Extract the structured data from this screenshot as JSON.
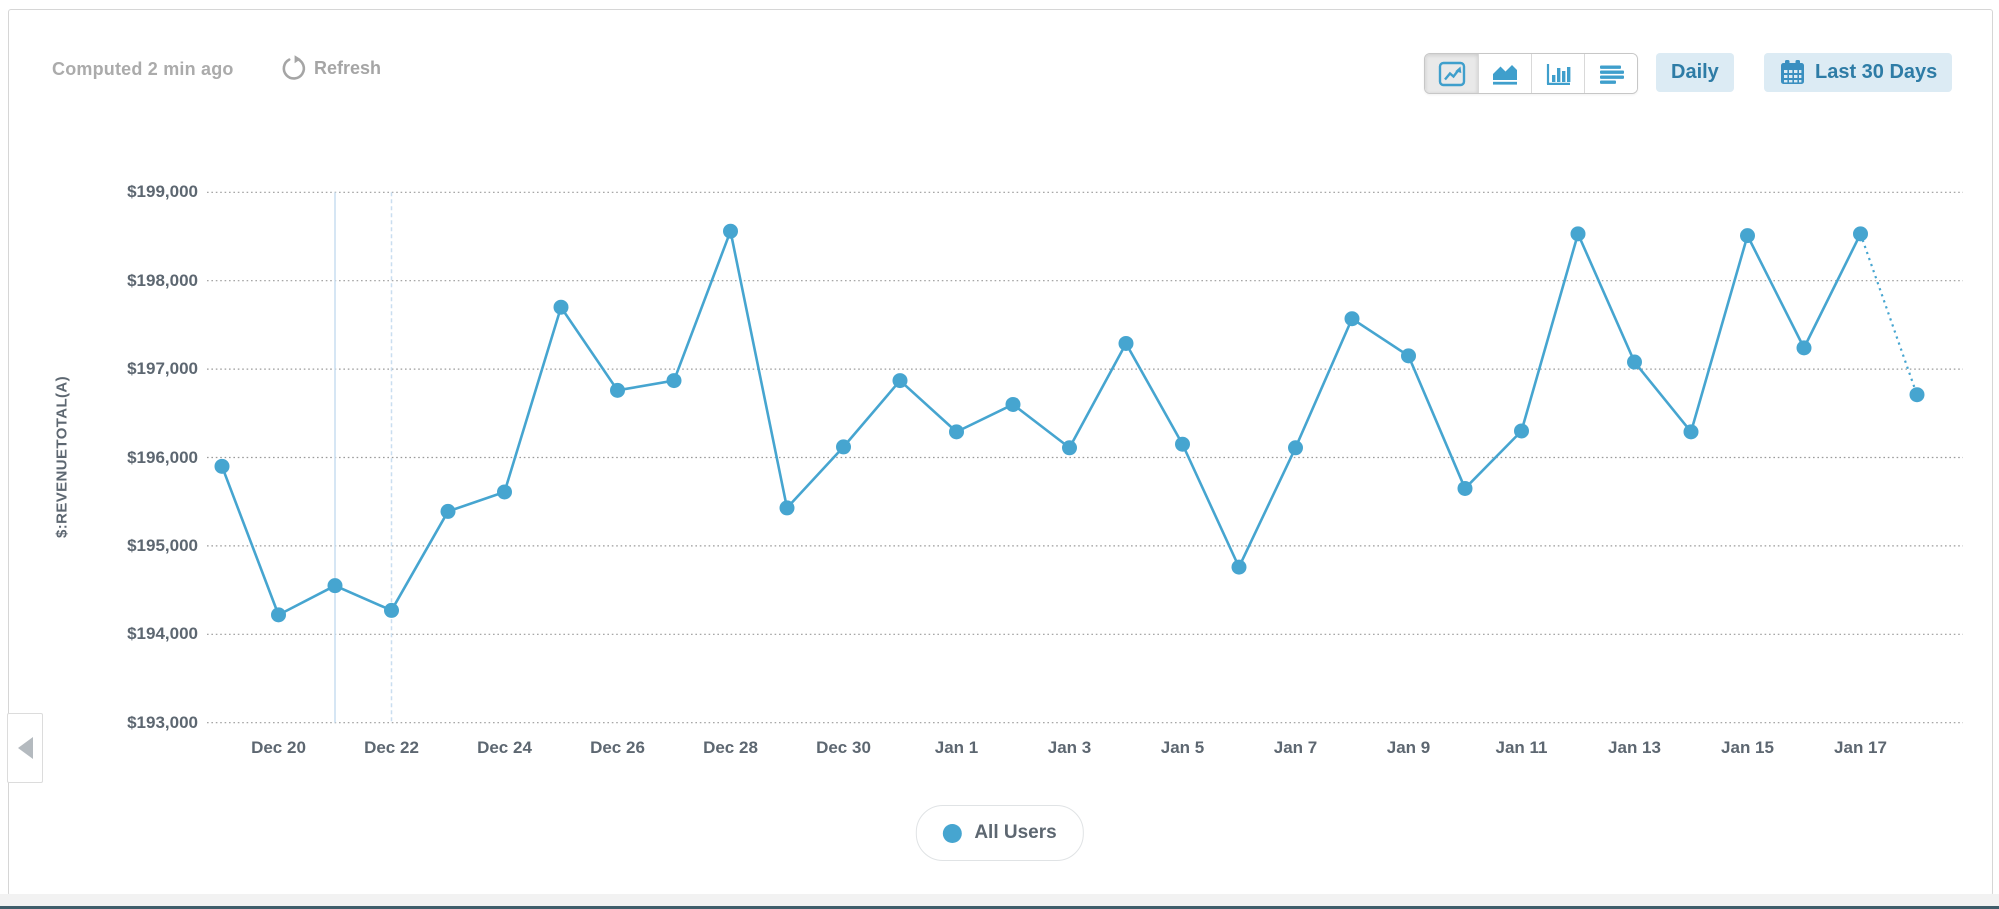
{
  "header": {
    "computed_label": "Computed 2 min ago",
    "refresh_label": "Refresh",
    "view_toggles": [
      {
        "name": "line-chart",
        "selected": true
      },
      {
        "name": "area-chart",
        "selected": false
      },
      {
        "name": "bar-chart",
        "selected": false
      },
      {
        "name": "table-rows",
        "selected": false
      }
    ],
    "granularity_label": "Daily",
    "range_label": "Last 30 Days"
  },
  "chart_data": {
    "type": "line",
    "title": "",
    "xlabel": "",
    "ylabel": "$:REVENUETOTAL(A)",
    "ylim": [
      193000,
      199000
    ],
    "grid": "horizontal-dotted",
    "x": [
      "Dec 19",
      "Dec 20",
      "Dec 21",
      "Dec 22",
      "Dec 23",
      "Dec 24",
      "Dec 25",
      "Dec 26",
      "Dec 27",
      "Dec 28",
      "Dec 29",
      "Dec 30",
      "Dec 31",
      "Jan 1",
      "Jan 2",
      "Jan 3",
      "Jan 4",
      "Jan 5",
      "Jan 6",
      "Jan 7",
      "Jan 8",
      "Jan 9",
      "Jan 10",
      "Jan 11",
      "Jan 12",
      "Jan 13",
      "Jan 14",
      "Jan 15",
      "Jan 16",
      "Jan 17",
      "Jan 18"
    ],
    "series": [
      {
        "name": "All Users",
        "color": "#46a5d0",
        "values": [
          195900,
          194220,
          194550,
          194270,
          195390,
          195610,
          197700,
          196760,
          196870,
          198560,
          195430,
          196120,
          196870,
          196290,
          196600,
          196110,
          197290,
          196150,
          194760,
          196110,
          197570,
          197150,
          195650,
          196300,
          198530,
          197080,
          196290,
          198510,
          197240,
          198530,
          196710
        ],
        "last_segment_style": "dotted"
      }
    ],
    "y_ticks": [
      {
        "label": "$199,000",
        "value": 199000
      },
      {
        "label": "$198,000",
        "value": 198000
      },
      {
        "label": "$197,000",
        "value": 197000
      },
      {
        "label": "$196,000",
        "value": 196000
      },
      {
        "label": "$195,000",
        "value": 195000
      },
      {
        "label": "$194,000",
        "value": 194000
      },
      {
        "label": "$193,000",
        "value": 193000
      }
    ],
    "x_tick_labels": [
      "Dec 20",
      "Dec 22",
      "Dec 24",
      "Dec 26",
      "Dec 28",
      "Dec 30",
      "Jan 1",
      "Jan 3",
      "Jan 5",
      "Jan 7",
      "Jan 9",
      "Jan 11",
      "Jan 13",
      "Jan 15",
      "Jan 17"
    ],
    "annotations": [
      {
        "x": "Dec 21",
        "style": "solid",
        "color": "#c9def0"
      },
      {
        "x": "Dec 22",
        "style": "dashed",
        "color": "#c9def0"
      }
    ],
    "legend_position": "bottom-center"
  },
  "legend": {
    "items": [
      {
        "label": "All Users",
        "color": "#46a5d0"
      }
    ]
  },
  "colors": {
    "accent_blue": "#46a5d0",
    "icon_blue": "#3f9fcc",
    "button_bg": "#dcebf4",
    "button_text": "#2e7ca6",
    "muted_text": "#ababab",
    "axis_text": "#5d6771",
    "gridline": "#9b9b9b",
    "annotation_line": "#c9def0",
    "bottom_bar": "#3f5d6a"
  }
}
